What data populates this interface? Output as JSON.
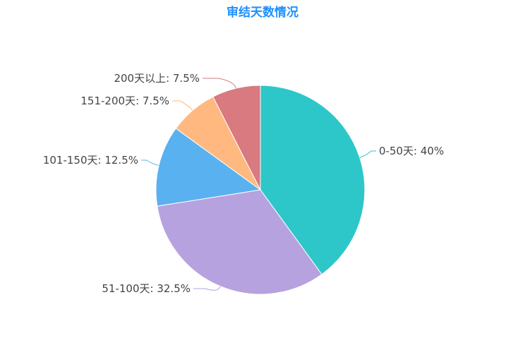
{
  "chart_data": {
    "type": "pie",
    "title": "审结天数情况",
    "slices": [
      {
        "label": "0-50天",
        "value": 40,
        "display": "0-50天: 40%",
        "color": "#2ec7c9"
      },
      {
        "label": "51-100天",
        "value": 32.5,
        "display": "51-100天: 32.5%",
        "color": "#b6a2de"
      },
      {
        "label": "101-150天",
        "value": 12.5,
        "display": "101-150天: 12.5%",
        "color": "#5ab1ef"
      },
      {
        "label": "151-200天",
        "value": 7.5,
        "display": "151-200天: 7.5%",
        "color": "#ffb980"
      },
      {
        "label": "200天以上",
        "value": 7.5,
        "display": "200天以上: 7.5%",
        "color": "#d87a80"
      }
    ]
  }
}
